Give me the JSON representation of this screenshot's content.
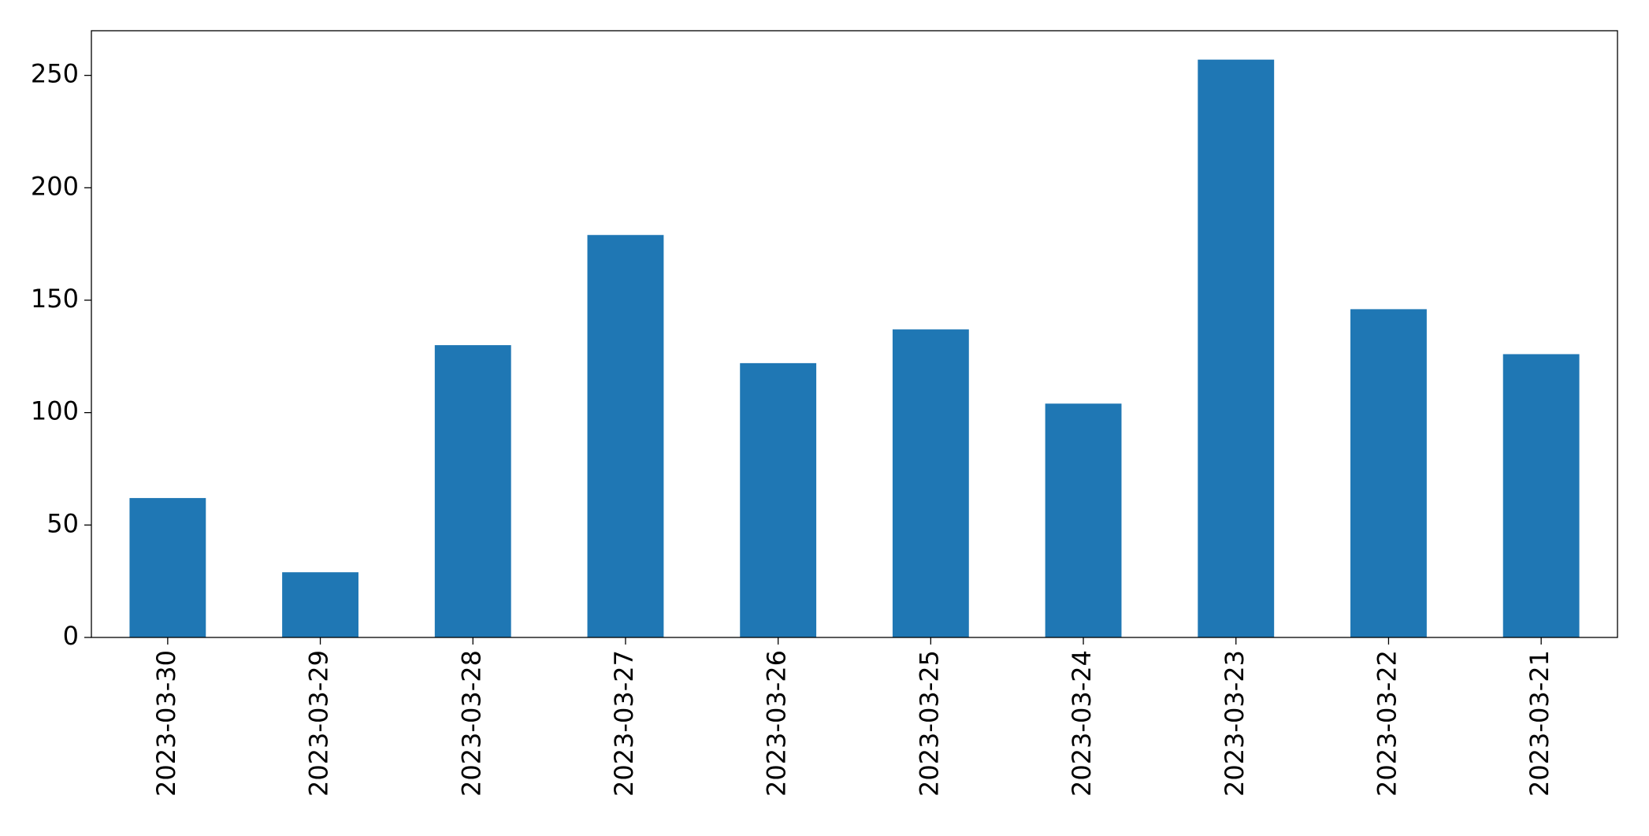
{
  "chart_data": {
    "type": "bar",
    "categories": [
      "2023-03-30",
      "2023-03-29",
      "2023-03-28",
      "2023-03-27",
      "2023-03-26",
      "2023-03-25",
      "2023-03-24",
      "2023-03-23",
      "2023-03-22",
      "2023-03-21"
    ],
    "values": [
      62,
      29,
      130,
      179,
      122,
      137,
      104,
      257,
      146,
      126
    ],
    "color": "#1f77b4",
    "ylim": [
      0,
      269.85
    ],
    "yticks": [
      0,
      50,
      100,
      150,
      200,
      250
    ],
    "grid": false
  }
}
